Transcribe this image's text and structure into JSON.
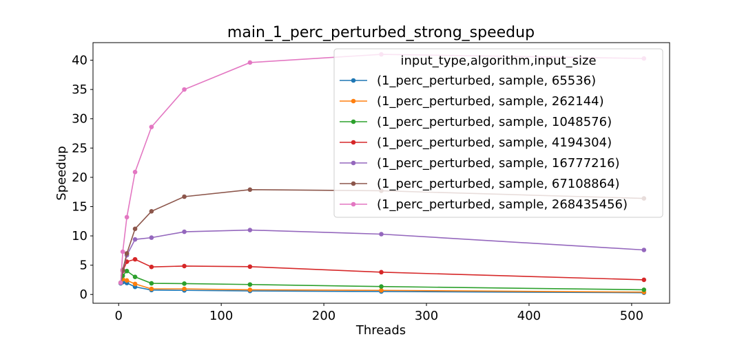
{
  "chart_data": {
    "type": "line",
    "title": "main_1_perc_perturbed_strong_speedup",
    "xlabel": "Threads",
    "ylabel": "Speedup",
    "xlim": [
      -25,
      537
    ],
    "ylim": [
      -1.5,
      43
    ],
    "xticks": [
      0,
      100,
      200,
      300,
      400,
      500
    ],
    "yticks": [
      0,
      5,
      10,
      15,
      20,
      25,
      30,
      35,
      40
    ],
    "grid": false,
    "legend": {
      "title": "input_type,algorithm,input_size",
      "placement": "upper right"
    },
    "x": [
      2,
      4,
      8,
      16,
      32,
      64,
      128,
      256,
      512
    ],
    "series": [
      {
        "name": "(1_perc_perturbed, sample, 65536)",
        "color": "#1f77b4",
        "values": [
          1.9,
          2.1,
          1.95,
          1.3,
          0.75,
          0.7,
          0.6,
          0.5,
          0.3
        ]
      },
      {
        "name": "(1_perc_perturbed, sample, 262144)",
        "color": "#ff7f0e",
        "values": [
          2.0,
          2.6,
          2.4,
          1.8,
          0.95,
          0.95,
          0.8,
          0.7,
          0.4
        ]
      },
      {
        "name": "(1_perc_perturbed, sample, 1048576)",
        "color": "#2ca02c",
        "values": [
          2.0,
          3.2,
          4.0,
          3.0,
          1.9,
          1.85,
          1.7,
          1.35,
          0.8
        ]
      },
      {
        "name": "(1_perc_perturbed, sample, 4194304)",
        "color": "#d62728",
        "values": [
          2.0,
          4.0,
          5.6,
          6.0,
          4.7,
          4.85,
          4.75,
          3.8,
          2.5
        ]
      },
      {
        "name": "(1_perc_perturbed, sample, 16777216)",
        "color": "#9467bd",
        "values": [
          2.0,
          4.1,
          6.7,
          9.4,
          9.7,
          10.7,
          11.0,
          10.3,
          7.6
        ]
      },
      {
        "name": "(1_perc_perturbed, sample, 67108864)",
        "color": "#8c564b",
        "values": [
          2.0,
          4.2,
          7.0,
          11.2,
          14.2,
          16.7,
          17.9,
          17.7,
          16.4
        ]
      },
      {
        "name": "(1_perc_perturbed, sample, 268435456)",
        "color": "#e377c2",
        "values": [
          2.0,
          7.3,
          13.2,
          20.9,
          28.6,
          35.0,
          39.6,
          41.0,
          40.3
        ]
      }
    ]
  }
}
